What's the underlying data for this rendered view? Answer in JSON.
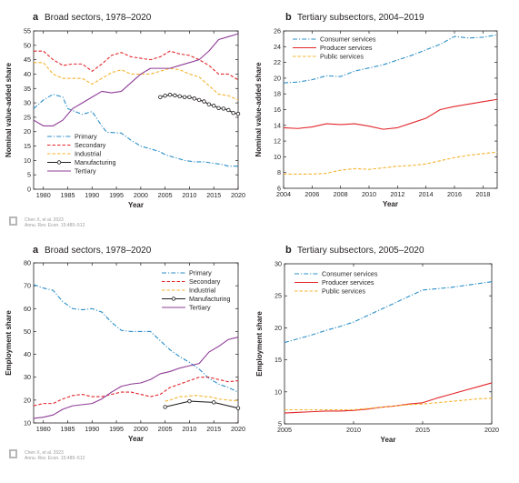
{
  "figure": {
    "colors": {
      "blue": "#2b8fc7",
      "red": "#e2262b",
      "yellow": "#f4b531",
      "black": "#231f20",
      "purple": "#8f3d97",
      "logo": "#b8b8b8"
    },
    "citations": [
      {
        "line1": "Chen X, et al. 2023",
        "line2": "Annu. Rev. Econ. 15:485–512"
      },
      {
        "line1": "Chen X, et al. 2023",
        "line2": "Annu. Rev. Econ. 15:485–512"
      }
    ]
  },
  "chart_data": [
    {
      "type": "line",
      "letter": "a",
      "title": "Broad sectors, 1978–2020",
      "xlabel": "Year",
      "ylabel": "Nominal value-added share",
      "xlim": [
        1978,
        2020
      ],
      "ylim": [
        0,
        55
      ],
      "xticks": [
        1980,
        1985,
        1990,
        1995,
        2000,
        2005,
        2010,
        2015,
        2020
      ],
      "yticks": [
        0,
        5,
        10,
        15,
        20,
        25,
        30,
        35,
        40,
        45,
        50,
        55
      ],
      "grid": false,
      "legend": "bottom-left",
      "series": [
        {
          "name": "Primary",
          "color": "blue",
          "dash": "dashdot",
          "marker": false,
          "x": [
            1978,
            1980,
            1982,
            1984,
            1985,
            1988,
            1990,
            1992,
            1993,
            1996,
            1998,
            2000,
            2002,
            2004,
            2005,
            2007,
            2009,
            2011,
            2013,
            2015,
            2017,
            2018,
            2020
          ],
          "y": [
            28,
            31,
            33,
            32,
            28,
            26,
            27,
            22,
            19.8,
            19.5,
            17,
            15,
            14,
            13,
            12,
            11,
            10,
            9.5,
            9.5,
            9,
            8.5,
            8,
            8
          ]
        },
        {
          "name": "Secondary",
          "color": "red",
          "dash": "dashed",
          "marker": false,
          "x": [
            1978,
            1980,
            1982,
            1984,
            1986,
            1988,
            1990,
            1992,
            1994,
            1996,
            1998,
            2000,
            2002,
            2004,
            2006,
            2008,
            2010,
            2012,
            2014,
            2016,
            2018,
            2020
          ],
          "y": [
            48,
            48,
            45,
            43,
            43.5,
            43.5,
            41,
            43.5,
            46.5,
            47.5,
            46,
            45.5,
            45,
            46,
            48,
            47,
            46.5,
            45,
            43,
            40,
            40,
            38
          ]
        },
        {
          "name": "Industrial",
          "color": "yellow",
          "dash": "dashed",
          "marker": false,
          "x": [
            1978,
            1980,
            1982,
            1984,
            1986,
            1988,
            1990,
            1992,
            1994,
            1996,
            1998,
            2000,
            2002,
            2004,
            2006,
            2008,
            2010,
            2012,
            2014,
            2016,
            2018,
            2020
          ],
          "y": [
            44,
            44,
            40,
            38.5,
            38.5,
            38.5,
            36.5,
            38.5,
            40.5,
            41.5,
            40,
            40,
            40,
            41,
            42,
            41.5,
            40,
            39,
            36,
            33,
            32.5,
            31
          ]
        },
        {
          "name": "Manufacturing",
          "color": "black",
          "dash": "solid",
          "marker": true,
          "x": [
            2004,
            2005,
            2006,
            2007,
            2008,
            2009,
            2010,
            2011,
            2012,
            2013,
            2014,
            2015,
            2016,
            2017,
            2018,
            2019,
            2020
          ],
          "y": [
            32,
            32.5,
            32.8,
            32.6,
            32.3,
            32,
            32,
            31.5,
            31,
            30.5,
            29.5,
            29,
            28.2,
            28,
            27.5,
            26.5,
            26.2
          ]
        },
        {
          "name": "Tertiary",
          "color": "purple",
          "dash": "solid",
          "marker": false,
          "x": [
            1978,
            1980,
            1982,
            1984,
            1986,
            1988,
            1990,
            1992,
            1994,
            1996,
            1998,
            2000,
            2002,
            2004,
            2006,
            2008,
            2010,
            2012,
            2014,
            2016,
            2018,
            2020
          ],
          "y": [
            24,
            22,
            22,
            24,
            28,
            30,
            32,
            34,
            33.5,
            34,
            37,
            40,
            42,
            42,
            42,
            43,
            44,
            45,
            48,
            52,
            53,
            54
          ]
        }
      ]
    },
    {
      "type": "line",
      "letter": "b",
      "title": "Tertiary subsectors, 2004–2019",
      "xlabel": "Year",
      "ylabel": "Nominal value-added share",
      "xlim": [
        2004,
        2019
      ],
      "ylim": [
        6,
        26
      ],
      "xticks": [
        2004,
        2006,
        2008,
        2010,
        2012,
        2014,
        2016,
        2018
      ],
      "yticks": [
        6,
        8,
        10,
        12,
        14,
        16,
        18,
        20,
        22,
        24,
        26
      ],
      "grid": false,
      "legend": "top-left",
      "series": [
        {
          "name": "Consumer services",
          "color": "blue",
          "dash": "dashdot",
          "marker": false,
          "x": [
            2004,
            2005,
            2006,
            2007,
            2008,
            2009,
            2010,
            2011,
            2012,
            2013,
            2014,
            2015,
            2016,
            2017,
            2018,
            2019
          ],
          "y": [
            19.4,
            19.5,
            19.8,
            20.3,
            20.2,
            20.9,
            21.3,
            21.7,
            22.3,
            22.9,
            23.6,
            24.3,
            25.3,
            25.1,
            25.2,
            25.5
          ]
        },
        {
          "name": "Producer services",
          "color": "red",
          "dash": "solid",
          "marker": false,
          "x": [
            2004,
            2005,
            2006,
            2007,
            2008,
            2009,
            2010,
            2011,
            2012,
            2013,
            2014,
            2015,
            2016,
            2017,
            2018,
            2019
          ],
          "y": [
            13.7,
            13.6,
            13.8,
            14.2,
            14.1,
            14.2,
            13.9,
            13.5,
            13.7,
            14.3,
            14.9,
            16.0,
            16.4,
            16.7,
            17.0,
            17.3
          ]
        },
        {
          "name": "Public services",
          "color": "yellow",
          "dash": "dashed",
          "marker": false,
          "x": [
            2004,
            2005,
            2006,
            2007,
            2008,
            2009,
            2010,
            2011,
            2012,
            2013,
            2014,
            2015,
            2016,
            2017,
            2018,
            2019
          ],
          "y": [
            7.8,
            7.8,
            7.8,
            7.9,
            8.3,
            8.5,
            8.4,
            8.6,
            8.8,
            8.9,
            9.1,
            9.5,
            9.9,
            10.2,
            10.4,
            10.6
          ]
        }
      ]
    },
    {
      "type": "line",
      "letter": "a",
      "title": "Broad sectors, 1978–2020",
      "xlabel": "Year",
      "ylabel": "Employment share",
      "xlim": [
        1978,
        2020
      ],
      "ylim": [
        10,
        80
      ],
      "xticks": [
        1980,
        1985,
        1990,
        1995,
        2000,
        2005,
        2010,
        2015,
        2020
      ],
      "yticks": [
        10,
        20,
        30,
        40,
        50,
        60,
        70,
        80
      ],
      "grid": false,
      "legend": "top-right",
      "series": [
        {
          "name": "Primary",
          "color": "blue",
          "dash": "dashdot",
          "marker": false,
          "x": [
            1978,
            1980,
            1982,
            1984,
            1986,
            1988,
            1990,
            1992,
            1994,
            1996,
            1998,
            2000,
            2002,
            2004,
            2006,
            2008,
            2010,
            2012,
            2014,
            2016,
            2018,
            2020
          ],
          "y": [
            70.5,
            69,
            68,
            63,
            60,
            59.5,
            60,
            58.5,
            54,
            50.5,
            50,
            50,
            50,
            46,
            42,
            39,
            36.5,
            33.5,
            29.5,
            27,
            25.5,
            23.5
          ]
        },
        {
          "name": "Secondary",
          "color": "red",
          "dash": "dashed",
          "marker": false,
          "x": [
            1978,
            1980,
            1982,
            1984,
            1986,
            1988,
            1990,
            1992,
            1994,
            1996,
            1998,
            2000,
            2002,
            2004,
            2006,
            2008,
            2010,
            2012,
            2014,
            2016,
            2018,
            2020
          ],
          "y": [
            17.5,
            18.5,
            18.5,
            20.5,
            22,
            22.5,
            21.5,
            21.5,
            22.5,
            23.5,
            23.5,
            22.5,
            21.5,
            22.5,
            25.5,
            27,
            28.5,
            30,
            30,
            29,
            28,
            28.5
          ]
        },
        {
          "name": "Industrial",
          "color": "yellow",
          "dash": "dashed",
          "marker": false,
          "x": [
            2005,
            2006,
            2007,
            2008,
            2009,
            2010,
            2011,
            2012,
            2013,
            2014,
            2015,
            2016,
            2017,
            2018,
            2019,
            2020
          ],
          "y": [
            19.5,
            20,
            20.8,
            21.5,
            21.5,
            21.8,
            22,
            22,
            21.5,
            21.5,
            21,
            20.5,
            20.2,
            20,
            19.8,
            19.8
          ]
        },
        {
          "name": "Manufacturing",
          "color": "black",
          "dash": "solid",
          "marker": true,
          "x": [
            2005,
            2010,
            2015,
            2020
          ],
          "y": [
            17,
            19.5,
            19,
            16.5
          ]
        },
        {
          "name": "Tertiary",
          "color": "purple",
          "dash": "solid",
          "marker": false,
          "x": [
            1978,
            1980,
            1982,
            1984,
            1986,
            1988,
            1990,
            1992,
            1994,
            1996,
            1998,
            2000,
            2002,
            2004,
            2006,
            2008,
            2010,
            2012,
            2014,
            2016,
            2018,
            2020
          ],
          "y": [
            12,
            12.5,
            13.5,
            16,
            17.5,
            18,
            18.5,
            20.5,
            23.5,
            26,
            27,
            27.5,
            29,
            31.5,
            32.5,
            34,
            35,
            36,
            41,
            43.5,
            46.5,
            47.5
          ]
        }
      ]
    },
    {
      "type": "line",
      "letter": "b",
      "title": "Tertiary subsectors, 2005–2020",
      "xlabel": "Year",
      "ylabel": "Employment share",
      "xlim": [
        2005,
        2020
      ],
      "ylim": [
        5,
        30
      ],
      "xticks": [
        2005,
        2010,
        2015,
        2020
      ],
      "yticks": [
        5,
        10,
        15,
        20,
        25,
        30
      ],
      "grid": false,
      "legend": "top-left",
      "series": [
        {
          "name": "Consumer services",
          "color": "blue",
          "dash": "dashdot",
          "marker": false,
          "x": [
            2005,
            2006,
            2007,
            2008,
            2009,
            2010,
            2011,
            2012,
            2013,
            2014,
            2015,
            2016,
            2017,
            2018,
            2019,
            2020
          ],
          "y": [
            17.7,
            18.3,
            18.9,
            19.6,
            20.2,
            20.9,
            21.9,
            22.9,
            23.9,
            24.9,
            25.9,
            26.1,
            26.3,
            26.6,
            26.9,
            27.2
          ]
        },
        {
          "name": "Producer services",
          "color": "red",
          "dash": "solid",
          "marker": false,
          "x": [
            2005,
            2006,
            2007,
            2008,
            2009,
            2010,
            2011,
            2012,
            2013,
            2014,
            2015,
            2016,
            2017,
            2018,
            2019,
            2020
          ],
          "y": [
            6.7,
            6.8,
            6.9,
            7.0,
            7.0,
            7.1,
            7.3,
            7.6,
            7.8,
            8.1,
            8.3,
            9.0,
            9.6,
            10.2,
            10.8,
            11.4
          ]
        },
        {
          "name": "Public services",
          "color": "yellow",
          "dash": "dashed",
          "marker": false,
          "x": [
            2005,
            2006,
            2007,
            2008,
            2009,
            2010,
            2011,
            2012,
            2013,
            2014,
            2015,
            2016,
            2017,
            2018,
            2019,
            2020
          ],
          "y": [
            7.2,
            7.2,
            7.2,
            7.2,
            7.2,
            7.2,
            7.4,
            7.6,
            7.8,
            8.0,
            8.1,
            8.3,
            8.5,
            8.7,
            8.9,
            9.0
          ]
        }
      ]
    }
  ]
}
